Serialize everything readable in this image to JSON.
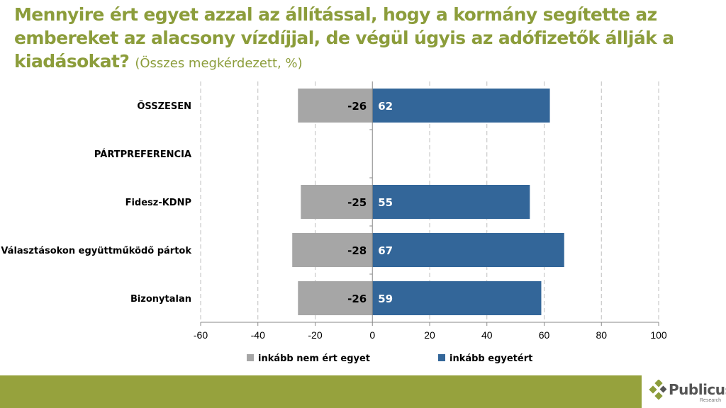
{
  "title": {
    "main": "Mennyire ért egyet azzal az állítással, hogy a kormány segítette az embereket az alacsony vízdíjjal, de végül úgyis az adófizetők állják a kiadásokat?",
    "subtitle": "(Összes megkérdezett, %)"
  },
  "chart_data": {
    "type": "bar",
    "orientation": "horizontal",
    "stacked": "diverging",
    "categories": [
      "ÖSSZESEN",
      "PÁRTPREFERENCIA",
      "Fidesz-KDNP",
      "Választásokon együttműködő pártok",
      "Bizonytalan"
    ],
    "series": [
      {
        "name": "inkább nem ért egyet",
        "color": "#a6a6a6",
        "values": [
          -26,
          null,
          -25,
          -28,
          -26
        ]
      },
      {
        "name": "inkább egyetért",
        "color": "#336699",
        "values": [
          62,
          null,
          55,
          67,
          59
        ]
      }
    ],
    "xlim": [
      -60,
      100
    ],
    "xticks": [
      -60,
      -40,
      -20,
      0,
      20,
      40,
      60,
      80,
      100
    ],
    "grid": true,
    "legend": "bottom"
  },
  "logo": {
    "name": "Publicus",
    "tagline": "Research"
  },
  "colors": {
    "accent": "#8c9d3b",
    "footer": "#96a23d"
  }
}
